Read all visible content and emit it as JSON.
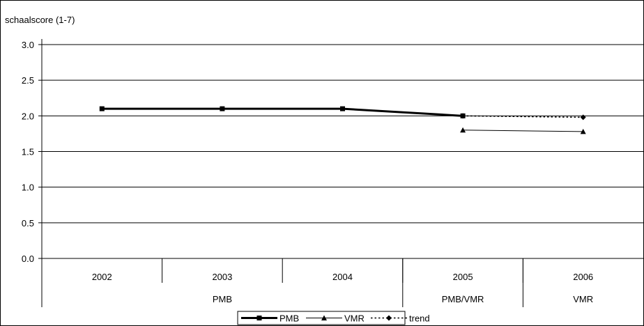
{
  "chart_data": {
    "type": "line",
    "ylabel": "schaalscore (1-7)",
    "ylim": [
      0,
      3.0
    ],
    "yticks": [
      "0.0",
      "0.5",
      "1.0",
      "1.5",
      "2.0",
      "2.5",
      "3.0"
    ],
    "categories": [
      "2002",
      "2003",
      "2004",
      "2005",
      "2006"
    ],
    "groups": [
      {
        "label": "PMB",
        "span": [
          0,
          2
        ]
      },
      {
        "label": "PMB/VMR",
        "span": [
          3,
          3
        ]
      },
      {
        "label": "VMR",
        "span": [
          4,
          4
        ]
      }
    ],
    "grid": true,
    "legend_position": "bottom-center",
    "series": [
      {
        "name": "PMB",
        "marker": "square",
        "style": "thick-solid",
        "color": "#000000",
        "values": [
          2.1,
          2.1,
          2.1,
          2.0,
          null
        ]
      },
      {
        "name": "VMR",
        "marker": "triangle",
        "style": "thin-solid",
        "color": "#000000",
        "values": [
          null,
          null,
          null,
          1.8,
          1.78
        ]
      },
      {
        "name": "trend",
        "marker": "diamond",
        "style": "dotted",
        "color": "#000000",
        "values": [
          null,
          null,
          null,
          2.0,
          1.98
        ]
      }
    ]
  }
}
